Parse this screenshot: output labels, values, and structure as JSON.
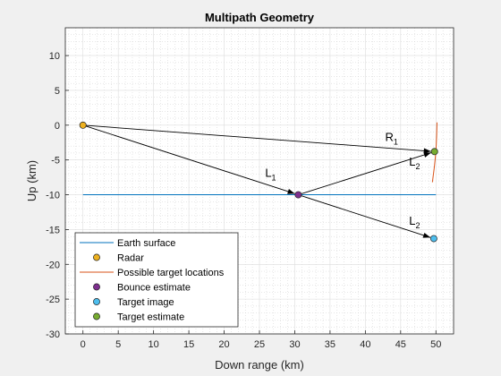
{
  "chart_data": {
    "type": "line",
    "title": "Multipath Geometry",
    "xlabel": "Down range (km)",
    "ylabel": "Up (km)",
    "xlim": [
      -2.5,
      52.5
    ],
    "ylim": [
      -30,
      14
    ],
    "xticks": [
      0,
      5,
      10,
      15,
      20,
      25,
      30,
      35,
      40,
      45,
      50
    ],
    "yticks": [
      -30,
      -25,
      -20,
      -15,
      -10,
      -5,
      0,
      5,
      10
    ],
    "grid": true,
    "minor_grid": true,
    "legend_location": "bottom-left",
    "series": [
      {
        "name": "Earth surface",
        "kind": "line",
        "color": "#0072BD",
        "x": [
          0,
          50
        ],
        "y": [
          -10,
          -10
        ]
      },
      {
        "name": "Radar",
        "kind": "marker",
        "color": "#EDB120",
        "x": [
          0
        ],
        "y": [
          0
        ]
      },
      {
        "name": "Possible target locations",
        "kind": "line",
        "color": "#D95319",
        "x": [
          49.5,
          49.8,
          50,
          50.1,
          50.15
        ],
        "y": [
          -8.2,
          -5.8,
          -3.8,
          -1.5,
          0.4
        ]
      },
      {
        "name": "Bounce estimate",
        "kind": "marker",
        "color": "#7E2F8E",
        "x": [
          30.5
        ],
        "y": [
          -10
        ]
      },
      {
        "name": "Target image",
        "kind": "marker",
        "color": "#4DBEEE",
        "x": [
          49.7
        ],
        "y": [
          -16.3
        ]
      },
      {
        "name": "Target estimate",
        "kind": "marker",
        "color": "#77AC30",
        "x": [
          49.8
        ],
        "y": [
          -3.8
        ]
      }
    ],
    "paths": [
      {
        "id": "R1",
        "from": [
          0,
          0
        ],
        "to": [
          49.8,
          -3.8
        ]
      },
      {
        "id": "L1",
        "from": [
          0,
          0
        ],
        "to": [
          30.5,
          -10
        ]
      },
      {
        "id": "L2-direct",
        "from": [
          30.5,
          -10
        ],
        "to": [
          49.8,
          -3.8
        ]
      },
      {
        "id": "L2-image",
        "from": [
          30.5,
          -10
        ],
        "to": [
          49.7,
          -16.3
        ]
      }
    ],
    "annotations": [
      {
        "base": "R",
        "sub": "1",
        "x": 42.8,
        "y": -2.3
      },
      {
        "base": "L",
        "sub": "1",
        "x": 25.8,
        "y": -7.4
      },
      {
        "base": "L",
        "sub": "2",
        "x": 46.2,
        "y": -5.8
      },
      {
        "base": "L",
        "sub": "2",
        "x": 46.2,
        "y": -14.3
      }
    ]
  }
}
